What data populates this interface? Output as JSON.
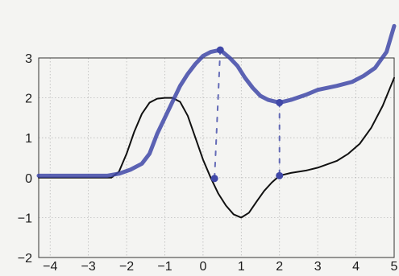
{
  "chart_data": {
    "type": "line",
    "title": "",
    "xlabel": "",
    "ylabel": "",
    "xlim": [
      -4.3,
      5
    ],
    "ylim": [
      -2,
      3
    ],
    "grid": true,
    "x_ticks": [
      "−4",
      "−3",
      "−2",
      "−1",
      "0",
      "1",
      "2",
      "3",
      "4",
      "5"
    ],
    "y_ticks": [
      "3",
      "2",
      "1",
      "0",
      "−1",
      "−2"
    ],
    "x_tick_values": [
      -4,
      -3,
      -2,
      -1,
      0,
      1,
      2,
      3,
      4,
      5
    ],
    "y_tick_values": [
      3,
      2,
      1,
      0,
      -1,
      -2
    ],
    "series": [
      {
        "name": "",
        "color": "#111111",
        "style": "solid",
        "points": [
          [
            -4.3,
            0
          ],
          [
            -3,
            0
          ],
          [
            -2.4,
            0
          ],
          [
            -2.2,
            0.15
          ],
          [
            -2,
            0.6
          ],
          [
            -1.8,
            1.15
          ],
          [
            -1.6,
            1.6
          ],
          [
            -1.4,
            1.88
          ],
          [
            -1.2,
            1.98
          ],
          [
            -1,
            2
          ],
          [
            -0.8,
            2
          ],
          [
            -0.6,
            1.9
          ],
          [
            -0.4,
            1.55
          ],
          [
            -0.2,
            1.0
          ],
          [
            0,
            0.45
          ],
          [
            0.2,
            0
          ],
          [
            0.4,
            -0.4
          ],
          [
            0.6,
            -0.7
          ],
          [
            0.8,
            -0.92
          ],
          [
            1,
            -1
          ],
          [
            1.2,
            -0.88
          ],
          [
            1.4,
            -0.6
          ],
          [
            1.6,
            -0.33
          ],
          [
            1.8,
            -0.12
          ],
          [
            2,
            0.05
          ],
          [
            2.3,
            0.12
          ],
          [
            2.7,
            0.18
          ],
          [
            3,
            0.25
          ],
          [
            3.5,
            0.42
          ],
          [
            3.8,
            0.6
          ],
          [
            4.1,
            0.85
          ],
          [
            4.4,
            1.25
          ],
          [
            4.7,
            1.8
          ],
          [
            5,
            2.5
          ]
        ]
      },
      {
        "name": "",
        "color": "#4048a8",
        "style": "marker",
        "points": [
          [
            -4.3,
            0.05
          ],
          [
            -3,
            0.05
          ],
          [
            -2.5,
            0.05
          ],
          [
            -2.2,
            0.1
          ],
          [
            -1.9,
            0.2
          ],
          [
            -1.6,
            0.35
          ],
          [
            -1.4,
            0.6
          ],
          [
            -1.2,
            1.1
          ],
          [
            -1,
            1.5
          ],
          [
            -0.8,
            1.9
          ],
          [
            -0.6,
            2.3
          ],
          [
            -0.4,
            2.6
          ],
          [
            -0.2,
            2.85
          ],
          [
            0,
            3.05
          ],
          [
            0.2,
            3.15
          ],
          [
            0.45,
            3.2
          ],
          [
            0.7,
            3.0
          ],
          [
            0.9,
            2.8
          ],
          [
            1.1,
            2.5
          ],
          [
            1.3,
            2.25
          ],
          [
            1.5,
            2.05
          ],
          [
            1.7,
            1.95
          ],
          [
            2,
            1.88
          ],
          [
            2.3,
            1.95
          ],
          [
            2.7,
            2.08
          ],
          [
            3,
            2.2
          ],
          [
            3.5,
            2.3
          ],
          [
            3.9,
            2.4
          ],
          [
            4.2,
            2.55
          ],
          [
            4.5,
            2.75
          ],
          [
            4.8,
            3.15
          ],
          [
            5,
            3.8
          ]
        ]
      },
      {
        "name": "",
        "color": "#4048a8",
        "style": "dashed-drop",
        "points": [
          [
            0.45,
            3.2
          ],
          [
            0.3,
            -0.02
          ]
        ]
      },
      {
        "name": "",
        "color": "#4048a8",
        "style": "dashed-drop",
        "points": [
          [
            2,
            1.88
          ],
          [
            2,
            0.05
          ]
        ]
      }
    ]
  }
}
